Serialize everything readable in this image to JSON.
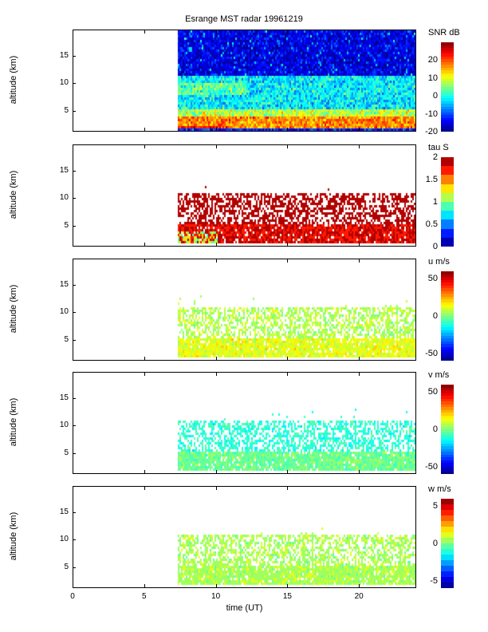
{
  "chart_data": {
    "type": "heatmap",
    "title": "Esrange MST radar 19961219",
    "xlabel": "time (UT)",
    "xlim": [
      0,
      24
    ],
    "xticks": [
      0,
      5,
      10,
      15,
      20
    ],
    "data_start_time_ut": 7.3,
    "panels": [
      {
        "name": "snr",
        "ylabel": "altitude (km)",
        "ylim": [
          1.2,
          19.8
        ],
        "yticks": [
          5,
          10,
          15
        ],
        "colorbar_label": "SNR dB",
        "clim": [
          -20,
          30
        ],
        "cticks": [
          -20,
          -10,
          0,
          10,
          20
        ],
        "levels": 32
      },
      {
        "name": "tau",
        "ylabel": "altitude (km)",
        "ylim": [
          1.2,
          19.8
        ],
        "yticks": [
          5,
          10,
          15
        ],
        "colorbar_label": "tau S",
        "clim": [
          0,
          2
        ],
        "cticks": [
          0,
          0.5,
          1,
          1.5,
          2
        ],
        "levels": 10
      },
      {
        "name": "u",
        "ylabel": "altitude (km)",
        "ylim": [
          1.2,
          19.8
        ],
        "yticks": [
          5,
          10,
          15
        ],
        "colorbar_label": "u m/s",
        "clim": [
          -60,
          60
        ],
        "cticks": [
          -50,
          0,
          50
        ],
        "levels": 32
      },
      {
        "name": "v",
        "ylabel": "altitude (km)",
        "ylim": [
          1.2,
          19.8
        ],
        "yticks": [
          5,
          10,
          15
        ],
        "colorbar_label": "v m/s",
        "clim": [
          -60,
          60
        ],
        "cticks": [
          -50,
          0,
          50
        ],
        "levels": 32
      },
      {
        "name": "w",
        "ylabel": "altitude (km)",
        "ylim": [
          1.2,
          19.8
        ],
        "yticks": [
          5,
          10,
          15
        ],
        "colorbar_label": "w m/s",
        "clim": [
          -6,
          6
        ],
        "cticks": [
          -5,
          0,
          5
        ],
        "levels": 16
      }
    ]
  }
}
